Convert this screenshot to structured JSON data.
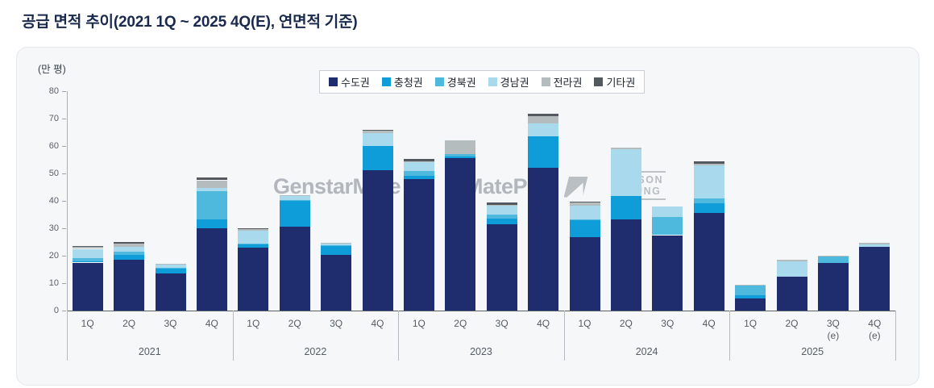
{
  "page": {
    "title": "공급 면적 추이(2021 1Q ~ 2025 4Q(E), 연면적 기준)"
  },
  "watermarks": {
    "brand1": "GenstarMate",
    "brand2": "MatePlus",
    "brand3_line1": "AVISON",
    "brand3_line2": "YOUNG"
  },
  "chart_data": {
    "type": "bar",
    "stacked": true,
    "title": "공급 면적 추이(2021 1Q ~ 2025 4Q(E), 연면적 기준)",
    "unit_label": "(만 평)",
    "ylim": [
      0,
      80
    ],
    "yticks": [
      0,
      10,
      20,
      30,
      40,
      50,
      60,
      70,
      80
    ],
    "grid": false,
    "legend_position": "top-center",
    "groups": [
      {
        "year": "2021",
        "quarters": [
          {
            "label": "1Q",
            "sub": ""
          },
          {
            "label": "2Q",
            "sub": ""
          },
          {
            "label": "3Q",
            "sub": ""
          },
          {
            "label": "4Q",
            "sub": ""
          }
        ]
      },
      {
        "year": "2022",
        "quarters": [
          {
            "label": "1Q",
            "sub": ""
          },
          {
            "label": "2Q",
            "sub": ""
          },
          {
            "label": "3Q",
            "sub": ""
          },
          {
            "label": "4Q",
            "sub": ""
          }
        ]
      },
      {
        "year": "2023",
        "quarters": [
          {
            "label": "1Q",
            "sub": ""
          },
          {
            "label": "2Q",
            "sub": ""
          },
          {
            "label": "3Q",
            "sub": ""
          },
          {
            "label": "4Q",
            "sub": ""
          }
        ]
      },
      {
        "year": "2024",
        "quarters": [
          {
            "label": "1Q",
            "sub": ""
          },
          {
            "label": "2Q",
            "sub": ""
          },
          {
            "label": "3Q",
            "sub": ""
          },
          {
            "label": "4Q",
            "sub": ""
          }
        ]
      },
      {
        "year": "2025",
        "quarters": [
          {
            "label": "1Q",
            "sub": ""
          },
          {
            "label": "2Q",
            "sub": ""
          },
          {
            "label": "3Q",
            "sub": "(e)"
          },
          {
            "label": "4Q",
            "sub": "(e)"
          }
        ]
      }
    ],
    "series": [
      {
        "name": "수도권",
        "color": "#1f2c6e",
        "values": [
          17.5,
          18.6,
          13.4,
          29.9,
          23.0,
          30.6,
          20.2,
          51.2,
          48.0,
          55.5,
          31.4,
          52.1,
          26.9,
          33.1,
          27.5,
          35.5,
          4.3,
          12.4,
          17.4,
          23.2
        ]
      },
      {
        "name": "충청권",
        "color": "#0e9dd9",
        "values": [
          0.5,
          1.7,
          2.0,
          3.4,
          1.2,
          9.3,
          3.4,
          8.8,
          1.0,
          0.7,
          2.0,
          11.3,
          5.9,
          8.8,
          0.0,
          3.5,
          1.3,
          0.0,
          0.0,
          0.0
        ]
      },
      {
        "name": "경북권",
        "color": "#4fb8dd",
        "values": [
          1.0,
          1.3,
          0.3,
          10.3,
          0.3,
          0.5,
          0.3,
          0.0,
          2.0,
          0.8,
          1.5,
          0.0,
          0.5,
          0.0,
          6.5,
          2.0,
          3.6,
          0.0,
          2.3,
          0.0
        ]
      },
      {
        "name": "경남권",
        "color": "#a9d9ec",
        "values": [
          3.5,
          1.7,
          1.0,
          1.0,
          4.5,
          1.3,
          0.4,
          4.6,
          3.0,
          0.0,
          3.4,
          4.9,
          4.9,
          17.0,
          4.0,
          12.0,
          0.0,
          5.6,
          0.0,
          0.8
        ]
      },
      {
        "name": "전라권",
        "color": "#b4bcbe",
        "values": [
          0.7,
          1.2,
          0.5,
          2.9,
          0.8,
          0.3,
          0.4,
          1.0,
          0.3,
          5.0,
          0.2,
          2.5,
          1.2,
          0.6,
          0.0,
          0.4,
          0.3,
          0.5,
          0.3,
          0.7
        ]
      },
      {
        "name": "기타권",
        "color": "#53595e",
        "values": [
          0.3,
          0.4,
          0.0,
          1.0,
          0.2,
          0.0,
          0.0,
          0.3,
          1.0,
          0.0,
          0.9,
          1.0,
          0.2,
          0.0,
          0.0,
          1.0,
          0.0,
          0.0,
          0.0,
          0.0
        ]
      }
    ]
  }
}
